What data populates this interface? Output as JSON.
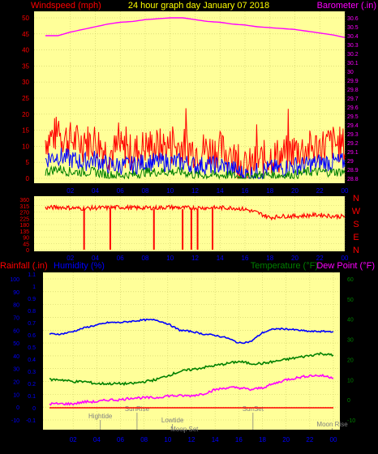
{
  "header": {
    "left_label": "Windspeed (mph)",
    "center_label": "24 hour graph day   January 07 2018",
    "right_label": "Barometer (.in)"
  },
  "wind_chart": {
    "y_ticks": [
      "0",
      "5",
      "10",
      "15",
      "20",
      "25",
      "30",
      "35",
      "40",
      "45",
      "50"
    ],
    "baro_ticks": [
      "28.8",
      "28.9",
      "29",
      "29.1",
      "29.2",
      "29.3",
      "29.4",
      "29.5",
      "29.6",
      "29.7",
      "29.8",
      "29.9",
      "30",
      "30.1",
      "30.2",
      "30.3",
      "30.4",
      "30.5",
      "30.6"
    ],
    "x_ticks": [
      "02",
      "04",
      "06",
      "08",
      "10",
      "12",
      "14",
      "16",
      "18",
      "20",
      "22",
      "00"
    ]
  },
  "dir_chart": {
    "y_ticks": [
      "360",
      "315",
      "270",
      "225",
      "180",
      "135",
      "90",
      "45",
      "0"
    ],
    "compass": [
      "N",
      "W",
      "S",
      "E",
      "N"
    ],
    "x_ticks": [
      "02",
      "04",
      "06",
      "08",
      "10",
      "12",
      "14",
      "16",
      "18",
      "20",
      "22",
      "00"
    ]
  },
  "lower_header": {
    "rainfall": "Rainfall (.in)",
    "humidity": "Humidity (%)",
    "temperature": "Temperature (°F)",
    "dewpoint": "Dew Point (°F)"
  },
  "lower_chart": {
    "humidity_ticks": [
      "-10",
      "0",
      "10",
      "20",
      "30",
      "40",
      "50",
      "60",
      "70",
      "80",
      "90",
      "100"
    ],
    "rain_ticks": [
      "-0.1",
      "0",
      "0.1",
      "0.2",
      "0.3",
      "0.4",
      "0.5",
      "0.6",
      "0.7",
      "0.8",
      "0.9",
      "1",
      "1.1"
    ],
    "temp_ticks": [
      "-10",
      "0",
      "10",
      "20",
      "30",
      "40",
      "50",
      "60"
    ],
    "x_ticks": [
      "02",
      "04",
      "06",
      "08",
      "10",
      "12",
      "14",
      "16",
      "18",
      "20",
      "22",
      "00"
    ],
    "events": [
      {
        "label": "Hightide",
        "hour": 4.3
      },
      {
        "label": "SunRise",
        "hour": 7.4
      },
      {
        "label": "Lowtide",
        "hour": 10.4
      },
      {
        "label": "Moon Set",
        "hour": 11.4
      },
      {
        "label": "SunSet",
        "hour": 17.2
      },
      {
        "label": "Moon Rise",
        "hour": 23.9
      }
    ]
  },
  "chart_data": [
    {
      "type": "line",
      "title": "24 hour graph day   January 07 2018",
      "ylabel": "Windspeed (mph)",
      "y2label": "Barometer (.in)",
      "ylim": [
        0,
        50
      ],
      "y2lim": [
        28.8,
        30.6
      ],
      "x": [
        0,
        1,
        2,
        3,
        4,
        5,
        6,
        7,
        8,
        9,
        10,
        11,
        12,
        13,
        14,
        15,
        16,
        17,
        18,
        19,
        20,
        21,
        22,
        23,
        24
      ],
      "series": [
        {
          "name": "Wind Gust",
          "color": "#ff0000",
          "values": [
            12,
            14,
            12,
            11,
            12,
            8,
            9,
            8,
            10,
            10,
            10,
            10,
            9,
            9,
            9,
            7,
            3,
            5,
            7,
            7,
            9,
            9,
            10,
            11,
            10
          ]
        },
        {
          "name": "Wind Average",
          "color": "#0000ff",
          "values": [
            6,
            7,
            6,
            5,
            6,
            4,
            4,
            4,
            5,
            5,
            5,
            5,
            4,
            4,
            4,
            3,
            1,
            2,
            3,
            3,
            4,
            4,
            5,
            5,
            5
          ]
        },
        {
          "name": "Wind Low",
          "color": "#008000",
          "values": [
            2,
            3,
            2,
            2,
            2,
            1,
            1,
            1,
            2,
            2,
            2,
            2,
            1,
            1,
            1,
            1,
            0,
            1,
            1,
            1,
            1,
            2,
            2,
            2,
            2
          ]
        },
        {
          "name": "Barometer",
          "color": "#ff00ff",
          "values": [
            30.4,
            30.4,
            30.44,
            30.47,
            30.5,
            30.53,
            30.55,
            30.56,
            30.58,
            30.59,
            30.6,
            30.6,
            30.58,
            30.56,
            30.55,
            30.53,
            30.52,
            30.5,
            30.49,
            30.48,
            30.47,
            30.45,
            30.43,
            30.41,
            30.38
          ]
        }
      ]
    },
    {
      "type": "scatter",
      "ylabel": "Wind Direction",
      "ylim": [
        0,
        360
      ],
      "x": [
        0,
        1,
        2,
        3,
        4,
        5,
        6,
        7,
        8,
        9,
        10,
        11,
        12,
        13,
        14,
        15,
        16,
        17,
        18,
        19,
        20,
        21,
        22,
        23,
        24
      ],
      "series": [
        {
          "name": "Wind Direction",
          "color": "#ff0000",
          "values": [
            300,
            305,
            300,
            295,
            300,
            300,
            305,
            300,
            300,
            300,
            305,
            300,
            300,
            300,
            300,
            300,
            290,
            265,
            230,
            240,
            240,
            245,
            250,
            240,
            238
          ]
        }
      ]
    },
    {
      "type": "line",
      "ylabel": "Humidity (%)",
      "y2label": "Temperature (°F)",
      "ylim": [
        -10,
        100
      ],
      "y2lim": [
        -10,
        60
      ],
      "x": [
        0,
        1,
        2,
        3,
        4,
        5,
        6,
        7,
        8,
        9,
        10,
        11,
        12,
        13,
        14,
        15,
        16,
        17,
        18,
        19,
        20,
        21,
        22,
        23,
        24
      ],
      "series": [
        {
          "name": "Humidity",
          "color": "#0000ff",
          "values": [
            57,
            57,
            59,
            62,
            64,
            66,
            66,
            67,
            68,
            68,
            65,
            60,
            59,
            57,
            56,
            54,
            50,
            51,
            58,
            61,
            61,
            60,
            59,
            59,
            59
          ]
        },
        {
          "name": "Temperature",
          "color": "#008000",
          "values": [
            10,
            10,
            9,
            9,
            8,
            8,
            8,
            8,
            9,
            10,
            12,
            14,
            15,
            16,
            17,
            18,
            19,
            18,
            18,
            19,
            20,
            21,
            22,
            23,
            22
          ]
        },
        {
          "name": "Dew Point",
          "color": "#ff00ff",
          "values": [
            -2,
            -2,
            -2,
            -1,
            -1,
            0,
            0,
            1,
            1,
            1,
            2,
            2,
            2,
            3,
            5,
            6,
            6,
            5,
            6,
            8,
            10,
            11,
            12,
            12,
            11
          ]
        },
        {
          "name": "Rainfall",
          "color": "#ff0000",
          "values": [
            0,
            0,
            0,
            0,
            0,
            0,
            0,
            0,
            0,
            0,
            0,
            0,
            0,
            0,
            0,
            0,
            0,
            0,
            0,
            0,
            0,
            0,
            0,
            0,
            0
          ]
        }
      ]
    }
  ]
}
